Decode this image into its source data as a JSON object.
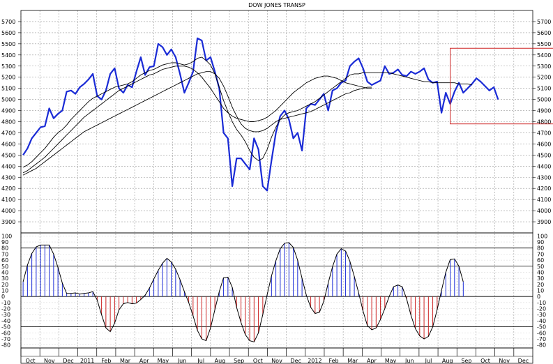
{
  "chart_data": [
    {
      "type": "line",
      "title": "DOW JONES TRANSP",
      "x_axis_labels": [
        "Oct",
        "Nov",
        "Dec",
        "2011",
        "Feb",
        "Mar",
        "Apr",
        "May",
        "Jun",
        "Jul",
        "Aug",
        "Sep",
        "Oct",
        "Nov",
        "Dec",
        "2012",
        "Feb",
        "Mar",
        "Apr",
        "May",
        "Jun",
        "Jul",
        "Aug",
        "Sep",
        "Oct",
        "Nov",
        "Dec"
      ],
      "ylim": [
        3800,
        5800
      ],
      "y_ticks": [
        3900,
        4000,
        4100,
        4200,
        4300,
        4400,
        4500,
        4600,
        4700,
        4800,
        4900,
        5000,
        5100,
        5200,
        5300,
        5400,
        5500,
        5600,
        5700
      ],
      "grid": true,
      "colors": {
        "price": "#1a2bd6",
        "highlight_box": "#cc2222",
        "averages": "#000000"
      },
      "highlight_box": {
        "from_week": 98,
        "to_week": 126,
        "y_low": 4780,
        "y_high": 5460
      },
      "series": [
        {
          "role": "price",
          "values": [
            4500,
            4560,
            4650,
            4700,
            4750,
            4760,
            4920,
            4830,
            4870,
            4900,
            5070,
            5080,
            5050,
            5110,
            5140,
            5180,
            5230,
            5030,
            5000,
            5080,
            5230,
            5280,
            5100,
            5060,
            5130,
            5110,
            5250,
            5380,
            5220,
            5290,
            5300,
            5500,
            5470,
            5400,
            5450,
            5380,
            5230,
            5060,
            5150,
            5250,
            5550,
            5530,
            5350,
            5380,
            5250,
            5100,
            4700,
            4650,
            4220,
            4470,
            4470,
            4420,
            4370,
            4650,
            4550,
            4220,
            4180,
            4450,
            4700,
            4850,
            4900,
            4820,
            4650,
            4700,
            4540,
            4920,
            4960,
            4950,
            5000,
            5050,
            4900,
            5080,
            5100,
            5150,
            5170,
            5300,
            5340,
            5370,
            5280,
            5160,
            5130,
            5150,
            5170,
            5300,
            5230,
            5240,
            5270,
            5220,
            5210,
            5250,
            5230,
            5250,
            5280,
            5180,
            5150,
            5160,
            4880,
            5060,
            4960,
            5070,
            5150,
            5060,
            5100,
            5140,
            5190,
            5160,
            5120,
            5080,
            5110,
            5000
          ]
        },
        {
          "role": "short-average",
          "values": [
            4390,
            4410,
            4440,
            4480,
            4520,
            4560,
            4610,
            4660,
            4700,
            4730,
            4770,
            4820,
            4860,
            4900,
            4940,
            4980,
            5010,
            5030,
            5050,
            5070,
            5090,
            5110,
            5120,
            5130,
            5140,
            5160,
            5190,
            5220,
            5240,
            5260,
            5270,
            5290,
            5310,
            5320,
            5330,
            5330,
            5320,
            5310,
            5320,
            5340,
            5370,
            5380,
            5350,
            5310,
            5230,
            5110,
            4990,
            4890,
            4800,
            4730,
            4680,
            4620,
            4540,
            4480,
            4450,
            4470,
            4550,
            4660,
            4750,
            4820,
            4860,
            4880,
            4890,
            4900,
            4920,
            4940,
            4960,
            4980,
            5010,
            5040,
            5070,
            5100,
            5130,
            5160,
            5190,
            5220,
            5230,
            5230,
            5240,
            5240,
            5240,
            5240,
            5240,
            5240,
            5240,
            5230,
            5220,
            5210,
            5200,
            5190,
            5180,
            5170,
            5160,
            5160,
            5150,
            5150,
            5150,
            5150,
            5150,
            5150,
            5140,
            5140,
            5140,
            5130
          ]
        },
        {
          "role": "medium-average",
          "values": [
            4340,
            4360,
            4390,
            4420,
            4450,
            4480,
            4520,
            4560,
            4600,
            4640,
            4680,
            4720,
            4760,
            4800,
            4840,
            4870,
            4900,
            4930,
            4960,
            4990,
            5020,
            5050,
            5080,
            5100,
            5120,
            5140,
            5160,
            5180,
            5200,
            5220,
            5230,
            5250,
            5270,
            5280,
            5290,
            5300,
            5300,
            5300,
            5290,
            5270,
            5240,
            5200,
            5150,
            5100,
            5040,
            4980,
            4920,
            4880,
            4850,
            4830,
            4820,
            4810,
            4800,
            4800,
            4810,
            4820,
            4840,
            4870,
            4900,
            4940,
            4980,
            5020,
            5060,
            5090,
            5120,
            5150,
            5170,
            5190,
            5200,
            5210,
            5210,
            5200,
            5190,
            5170,
            5150,
            5140,
            5130,
            5120,
            5110,
            5100,
            5100
          ]
        },
        {
          "role": "long-average",
          "values": [
            4320,
            4340,
            4360,
            4380,
            4410,
            4440,
            4470,
            4500,
            4530,
            4560,
            4590,
            4620,
            4650,
            4680,
            4710,
            4730,
            4750,
            4770,
            4790,
            4810,
            4830,
            4850,
            4870,
            4890,
            4910,
            4930,
            4950,
            4970,
            4990,
            5010,
            5030,
            5050,
            5070,
            5090,
            5110,
            5130,
            5150,
            5170,
            5190,
            5210,
            5230,
            5240,
            5250,
            5250,
            5230,
            5190,
            5120,
            5030,
            4930,
            4850,
            4780,
            4740,
            4720,
            4710,
            4710,
            4720,
            4740,
            4770,
            4800,
            4820,
            4830,
            4840,
            4850,
            4860,
            4870,
            4880,
            4890,
            4910,
            4930,
            4950,
            4970,
            4990,
            5010,
            5030,
            5050,
            5060,
            5080,
            5090,
            5100,
            5110,
            5110
          ]
        }
      ]
    },
    {
      "type": "area",
      "title": "",
      "ylim": [
        -85,
        105
      ],
      "y_ticks": [
        100,
        90,
        80,
        70,
        60,
        50,
        40,
        30,
        20,
        10,
        0,
        -10,
        -20,
        -30,
        -40,
        -50,
        -60,
        -70,
        -80
      ],
      "reference_lines": [
        80,
        50,
        0,
        -50
      ],
      "colors": {
        "positive": "#1a2bd6",
        "negative": "#cc2222",
        "curve": "#000000"
      },
      "values": [
        24,
        52,
        71,
        82,
        85,
        85,
        85,
        70,
        48,
        22,
        5,
        5,
        6,
        4,
        5,
        6,
        8,
        -6,
        -30,
        -52,
        -58,
        -44,
        -22,
        -12,
        -10,
        -12,
        -11,
        -5,
        2,
        14,
        29,
        43,
        55,
        63,
        57,
        45,
        28,
        8,
        -10,
        -32,
        -56,
        -70,
        -73,
        -52,
        -22,
        8,
        31,
        32,
        15,
        -18,
        -43,
        -63,
        -73,
        -75,
        -60,
        -30,
        3,
        34,
        59,
        79,
        88,
        89,
        81,
        60,
        30,
        2,
        -18,
        -28,
        -26,
        -8,
        22,
        49,
        70,
        79,
        75,
        58,
        33,
        6,
        -24,
        -48,
        -55,
        -52,
        -38,
        -20,
        0,
        16,
        19,
        16,
        -4,
        -31,
        -53,
        -65,
        -70,
        -66,
        -50,
        -22,
        10,
        40,
        61,
        62,
        50,
        24
      ]
    }
  ]
}
